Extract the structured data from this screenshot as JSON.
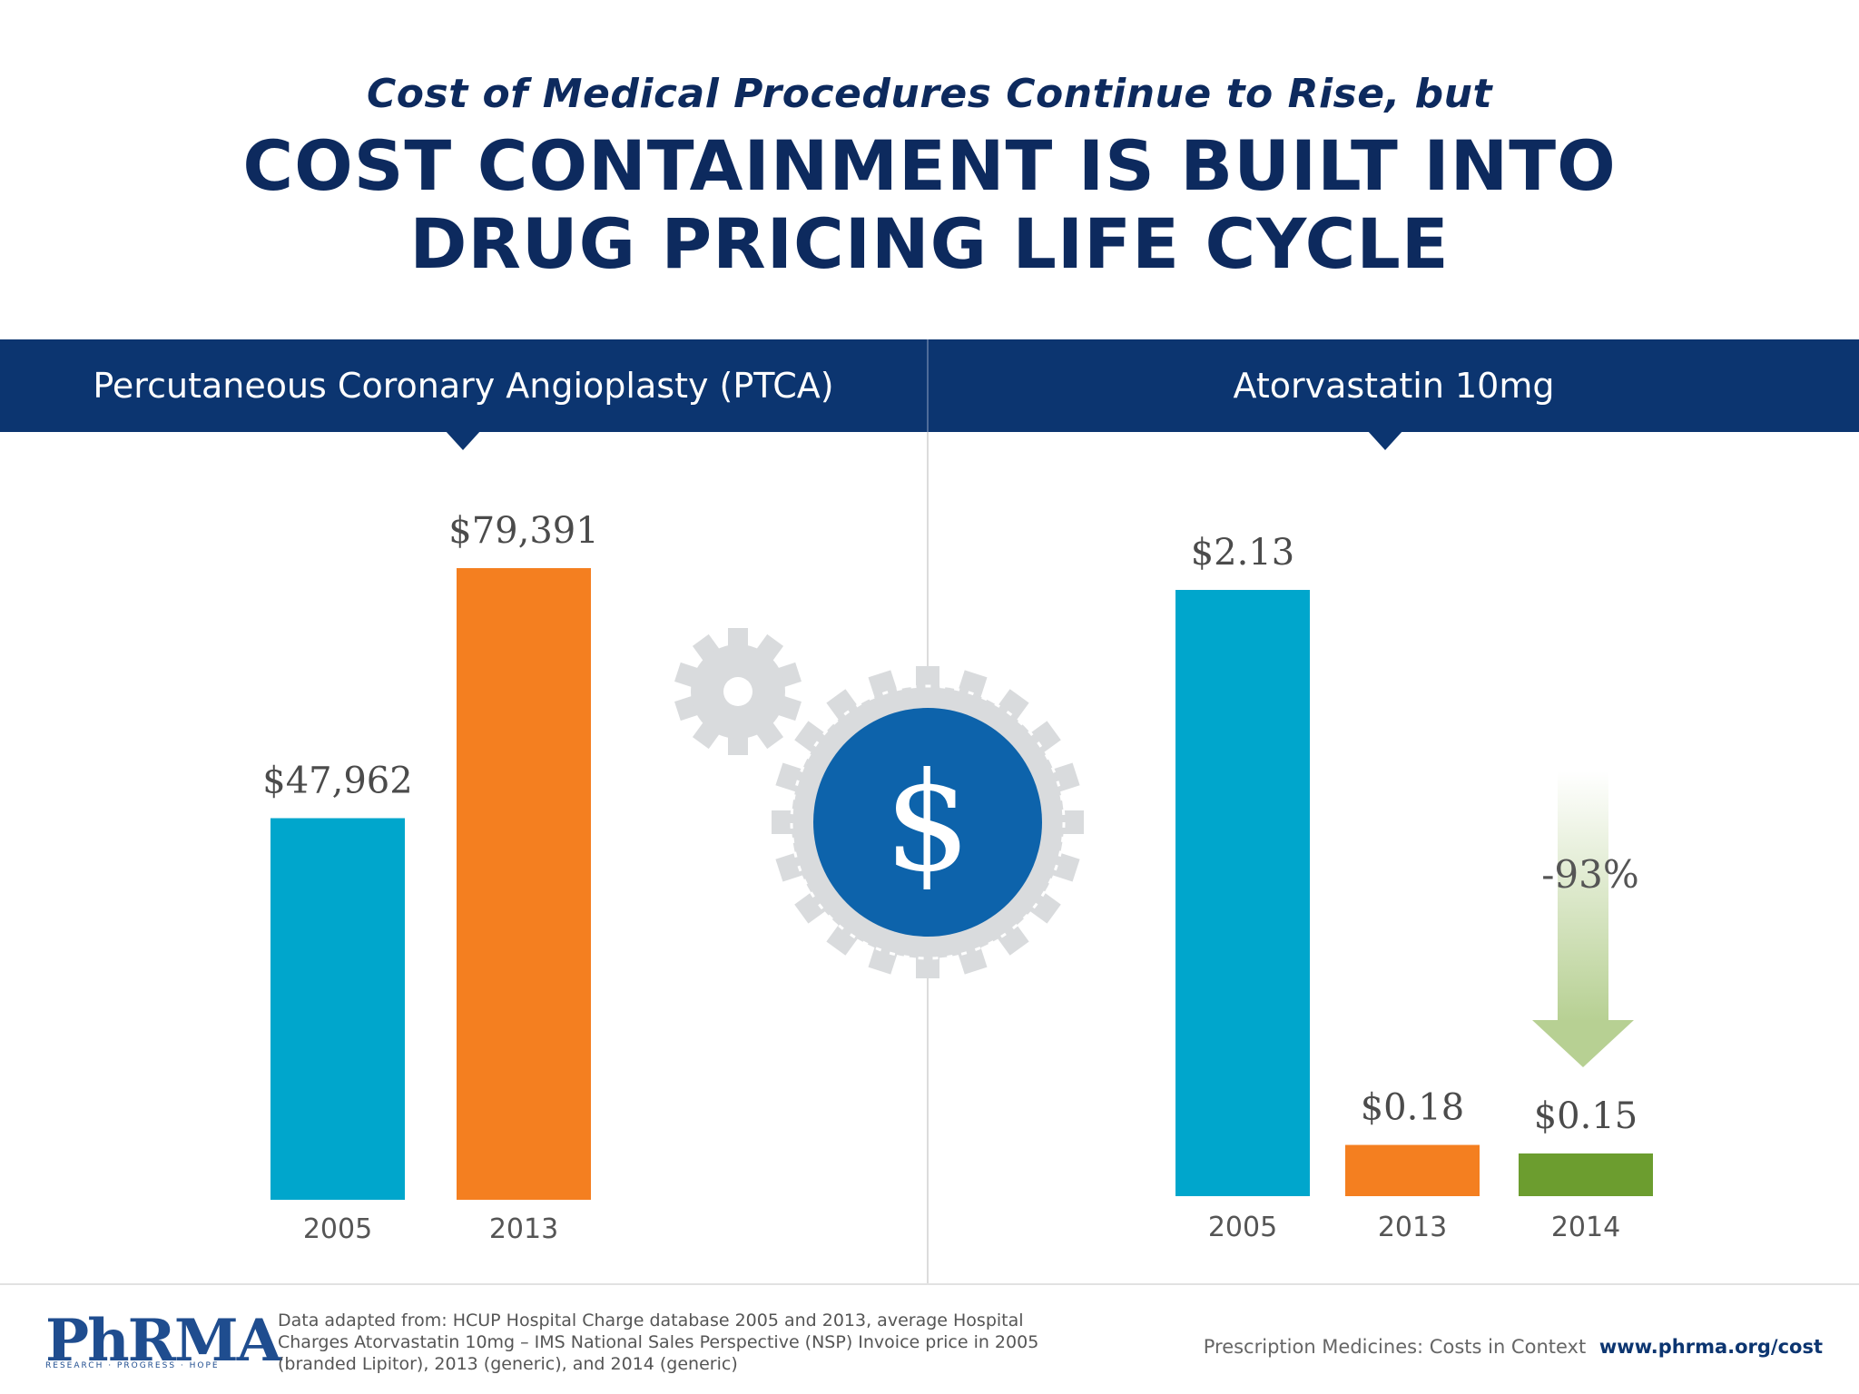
{
  "header": {
    "subtitle": "Cost of Medical Procedures Continue to Rise, but",
    "title_line1": "COST CONTAINMENT IS BUILT INTO",
    "title_line2": "DRUG PRICING LIFE CYCLE"
  },
  "colors": {
    "navy": "#0c3570",
    "teal": "#00a6cc",
    "orange": "#f47f20",
    "green": "#6c9d2f",
    "gear_gray": "#d9dbdd",
    "coin_blue": "#0d63ab"
  },
  "chart_data": [
    {
      "type": "bar",
      "title": "Percutaneous Coronary Angioplasty (PTCA)",
      "categories": [
        "2005",
        "2013"
      ],
      "values": [
        47962,
        79391
      ],
      "value_labels": [
        "$47,962",
        "$79,391"
      ],
      "ylim": [
        0,
        79391
      ],
      "grid": false
    },
    {
      "type": "bar",
      "title": "Atorvastatin 10mg",
      "categories": [
        "2005",
        "2013",
        "2014"
      ],
      "values": [
        2.13,
        0.18,
        0.15
      ],
      "value_labels": [
        "$2.13",
        "$0.18",
        "$0.15"
      ],
      "ylim": [
        0,
        2.13
      ],
      "grid": false,
      "annotation": "-93%"
    }
  ],
  "center_icon": {
    "name": "dollar-gear-icon",
    "symbol": "$"
  },
  "footer": {
    "logo": "PhRMA",
    "logo_tagline": "RESEARCH · PROGRESS · HOPE",
    "source_text": "Data adapted from: HCUP Hospital Charge database 2005 and 2013, average Hospital Charges Atorvastatin 10mg – IMS National Sales Perspective (NSP) Invoice price in 2005 (branded Lipitor), 2013 (generic), and 2014 (generic)",
    "tagline": "Prescription Medicines: Costs in Context",
    "url": "www.phrma.org/cost"
  }
}
